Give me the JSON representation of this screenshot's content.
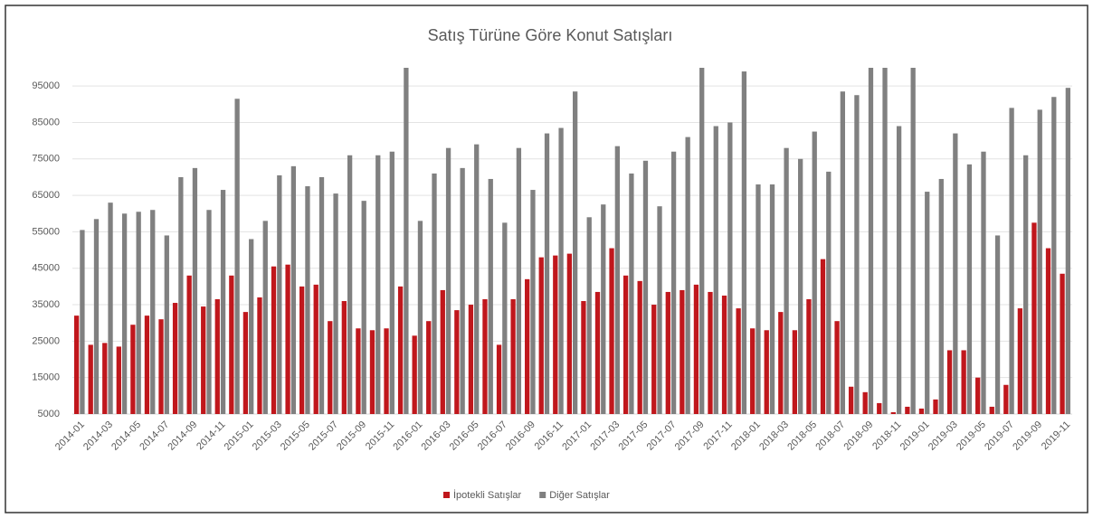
{
  "chart_data": {
    "type": "bar",
    "title": "Satış Türüne Göre Konut Satışları",
    "categories": [
      "2014-01",
      null,
      "2014-03",
      null,
      "2014-05",
      null,
      "2014-07",
      null,
      "2014-09",
      null,
      "2014-11",
      null,
      "2015-01",
      null,
      "2015-03",
      null,
      "2015-05",
      null,
      "2015-07",
      null,
      "2015-09",
      null,
      "2015-11",
      null,
      "2016-01",
      null,
      "2016-03",
      null,
      "2016-05",
      null,
      "2016-07",
      null,
      "2016-09",
      null,
      "2016-11",
      null,
      "2017-01",
      null,
      "2017-03",
      null,
      "2017-05",
      null,
      "2017-07",
      null,
      "2017-09",
      null,
      "2017-11",
      null,
      "2018-01",
      null,
      "2018-03",
      null,
      "2018-05",
      null,
      "2018-07",
      null,
      "2018-09",
      null,
      "2018-11",
      null,
      "2019-01",
      null,
      "2019-03",
      null,
      "2019-05",
      null,
      "2019-07",
      null,
      "2019-09",
      null,
      "2019-11"
    ],
    "series": [
      {
        "name": "İpotekli Satışlar",
        "color": "#c0171c",
        "values": [
          32000,
          24000,
          24500,
          23500,
          29500,
          32000,
          31000,
          35500,
          43000,
          34500,
          36500,
          43000,
          33000,
          37000,
          45500,
          46000,
          40000,
          40500,
          30500,
          36000,
          28500,
          28000,
          28500,
          40000,
          26500,
          30500,
          39000,
          33500,
          35000,
          36500,
          24000,
          36500,
          42000,
          48000,
          48500,
          49000,
          36000,
          38500,
          50500,
          43000,
          41500,
          35000,
          38500,
          39000,
          40500,
          38500,
          37500,
          34000,
          28500,
          28000,
          33000,
          28000,
          36500,
          47500,
          30500,
          12500,
          11000,
          8000,
          5500,
          7000,
          6500,
          9000,
          22500,
          22500,
          15000,
          7000,
          13000,
          34000,
          57500,
          50500,
          43500
        ]
      },
      {
        "name": "Diğer Satışlar",
        "color": "#808080",
        "values": [
          55500,
          58500,
          63000,
          60000,
          60500,
          61000,
          54000,
          70000,
          72500,
          61000,
          66500,
          91500,
          53000,
          58000,
          70500,
          73000,
          67500,
          70000,
          65500,
          76000,
          63500,
          76000,
          77000,
          100000,
          58000,
          71000,
          78000,
          72500,
          79000,
          69500,
          57500,
          78000,
          66500,
          82000,
          83500,
          93500,
          59000,
          62500,
          78500,
          71000,
          74500,
          62000,
          77000,
          81000,
          100000,
          84000,
          85000,
          99000,
          68000,
          68000,
          78000,
          75000,
          82500,
          71500,
          93500,
          92500,
          100000,
          100000,
          84000,
          100000,
          66000,
          69500,
          82000,
          73500,
          77000,
          54000,
          89000,
          76000,
          88500,
          92000,
          94500
        ]
      }
    ],
    "ylim": [
      5000,
      100000
    ],
    "yticks": [
      5000,
      15000,
      25000,
      35000,
      45000,
      55000,
      65000,
      75000,
      85000,
      95000
    ],
    "grid": true,
    "legend": "bottom"
  }
}
